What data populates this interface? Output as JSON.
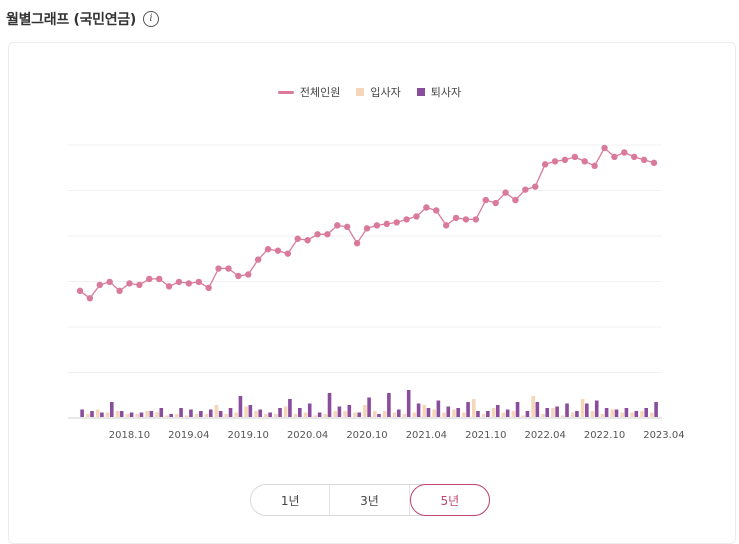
{
  "header": {
    "title": "월별그래프 (국민연금)",
    "info_icon": "info-icon"
  },
  "legend": [
    {
      "label": "전체인원",
      "color": "#d97a9a",
      "kind": "line"
    },
    {
      "label": "입사자",
      "color": "#f5d6b8",
      "kind": "box"
    },
    {
      "label": "퇴사자",
      "color": "#8a4c9c",
      "kind": "box"
    }
  ],
  "range": {
    "options": [
      "1년",
      "3년",
      "5년"
    ],
    "selected": "5년"
  },
  "chart_data": {
    "type": "line+bar",
    "x_ticks": [
      "2018.10",
      "2019.04",
      "2019.10",
      "2020.04",
      "2020.10",
      "2021.04",
      "2021.10",
      "2022.04",
      "2022.10",
      "2023.04"
    ],
    "x_start": "2018.05",
    "x_end": "2023.04",
    "grid": true,
    "legend_position": "top-center",
    "series": [
      {
        "name": "전체인원",
        "type": "line",
        "color": "#d97a9a",
        "values": [
          257,
          252,
          261,
          263,
          257,
          262,
          261,
          265,
          265,
          260,
          263,
          262,
          263,
          259,
          272,
          272,
          267,
          268,
          278,
          285,
          284,
          282,
          292,
          291,
          295,
          295,
          301,
          300,
          289,
          299,
          301,
          302,
          303,
          305,
          307,
          313,
          311,
          301,
          306,
          305,
          305,
          318,
          316,
          323,
          318,
          325,
          327,
          342,
          344,
          345,
          347,
          344,
          341,
          353,
          347,
          350,
          347,
          345,
          343
        ]
      },
      {
        "name": "입사자",
        "type": "bar",
        "color": "#f5d6b8",
        "values": [
          0,
          2,
          5,
          3,
          4,
          2,
          2,
          4,
          3,
          1,
          2,
          1,
          2,
          2,
          8,
          2,
          3,
          7,
          4,
          2,
          2,
          7,
          2,
          3,
          1,
          2,
          4,
          4,
          3,
          8,
          4,
          4,
          3,
          2,
          3,
          8,
          5,
          3,
          5,
          3,
          12,
          2,
          6,
          3,
          4,
          1,
          14,
          2,
          6,
          1,
          3,
          12,
          4,
          2,
          5,
          3,
          3,
          4,
          3
        ]
      },
      {
        "name": "퇴사자",
        "type": "bar",
        "color": "#8a4c9c",
        "values": [
          5,
          4,
          3,
          10,
          4,
          3,
          3,
          4,
          6,
          2,
          6,
          5,
          4,
          5,
          4,
          6,
          14,
          8,
          5,
          3,
          6,
          12,
          6,
          9,
          3,
          16,
          7,
          8,
          3,
          13,
          2,
          16,
          5,
          18,
          9,
          6,
          11,
          7,
          6,
          10,
          4,
          4,
          8,
          5,
          10,
          4,
          10,
          6,
          7,
          9,
          4,
          9,
          11,
          6,
          5,
          6,
          4,
          6,
          10
        ]
      }
    ]
  }
}
